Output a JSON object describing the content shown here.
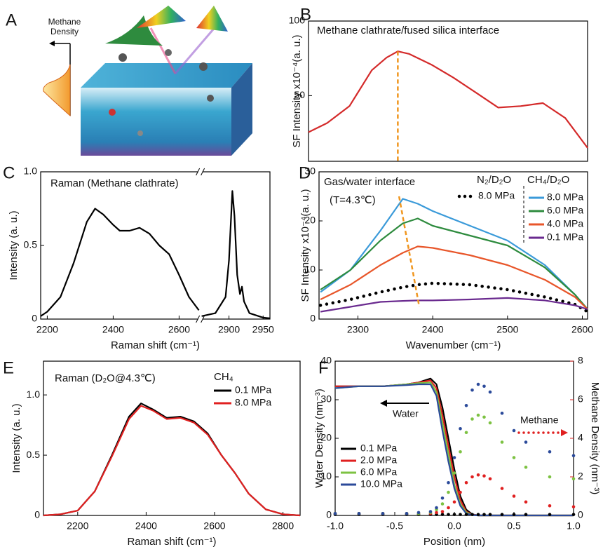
{
  "illustration": {
    "panel_label": "A",
    "label_lines": [
      "Methane",
      "Density"
    ]
  },
  "chart_data": [
    {
      "type": "line",
      "panel_label": "B",
      "title": "Methane clathrate/fused silica interface",
      "ylabel": "SF Intensity x10⁻⁴(a. u.)",
      "xlim": [
        2235,
        2610
      ],
      "ylim": [
        6,
        100
      ],
      "yticks": [
        50,
        100
      ],
      "x": [
        2235,
        2260,
        2290,
        2320,
        2340,
        2355,
        2370,
        2400,
        2430,
        2460,
        2490,
        2520,
        2550,
        2580,
        2610
      ],
      "series": [
        {
          "color": "#d42a2a",
          "values": [
            25.5,
            31.6,
            43,
            67,
            75.5,
            79.7,
            78,
            70.8,
            62,
            52,
            42,
            43,
            45,
            35,
            15
          ]
        }
      ],
      "peak_line": {
        "x": [
          2355,
          2355
        ],
        "y": [
          79.7,
          6
        ],
        "color": "#f0961e"
      }
    },
    {
      "type": "line",
      "panel_label": "C",
      "title": "Raman (Methane clathrate)",
      "xlabel": "Raman shift (cm⁻¹)",
      "ylabel": "Intensity (a. u.)",
      "xlim": [
        2180,
        2960
      ],
      "xbreak": [
        2660,
        2860
      ],
      "xticks": [
        2200,
        2400,
        2600,
        2900,
        2950
      ],
      "ylim": [
        0,
        1
      ],
      "yticks": [
        0,
        0.5,
        {
          "value": 1,
          "label": "1.0"
        }
      ],
      "x": [
        2180,
        2200,
        2240,
        2280,
        2320,
        2345,
        2370,
        2400,
        2420,
        2450,
        2480,
        2510,
        2540,
        2570,
        2600,
        2630,
        2660,
        2760,
        2860,
        2880,
        2895,
        2900,
        2905,
        2908,
        2912,
        2916,
        2919,
        2922,
        2930,
        2950,
        2960
      ],
      "series": [
        {
          "color": "#000000",
          "values": [
            0.02,
            0.05,
            0.15,
            0.38,
            0.66,
            0.75,
            0.71,
            0.64,
            0.6,
            0.6,
            0.62,
            0.58,
            0.5,
            0.44,
            0.3,
            0.15,
            0.06,
            null,
            0.02,
            0.04,
            0.15,
            0.4,
            0.87,
            0.7,
            0.3,
            0.17,
            0.22,
            0.12,
            0.04,
            0.01,
            0.005
          ]
        }
      ]
    },
    {
      "type": "line",
      "panel_label": "D",
      "title": "Gas/water interface",
      "subtitle": "(T=4.3℃)",
      "xlabel": "Wavenumber (cm⁻¹)",
      "ylabel": "SF Intensity x10⁻⁴(a. u.)",
      "xlim": [
        2248,
        2607
      ],
      "xticks": [
        2300,
        2400,
        2500,
        2600
      ],
      "ylim": [
        0,
        30
      ],
      "yticks": [
        0,
        10,
        20,
        30
      ],
      "legend_titles": [
        "N₂/D₂O",
        "CH₄/D₂O"
      ],
      "x": [
        2250,
        2290,
        2330,
        2360,
        2380,
        2400,
        2450,
        2500,
        2550,
        2590,
        2607
      ],
      "series": [
        {
          "name": "8.0 MPa",
          "color": "#000000",
          "style": "dotted",
          "group": 0,
          "values": [
            2.8,
            4,
            5.5,
            6.5,
            7,
            7.3,
            7,
            6,
            4.5,
            3,
            1.5
          ]
        },
        {
          "name": "8.0 MPa",
          "color": "#3a9ad9",
          "group": 1,
          "values": [
            5.5,
            10,
            18,
            24.5,
            23.5,
            22,
            19,
            16,
            11,
            5,
            2
          ]
        },
        {
          "name": "6.0 MPa",
          "color": "#2e8b3e",
          "group": 1,
          "values": [
            6,
            10,
            16,
            19.5,
            20.5,
            19,
            17,
            15,
            10.5,
            5,
            2
          ]
        },
        {
          "name": "4.0 MPa",
          "color": "#e8562a",
          "group": 1,
          "values": [
            4,
            7,
            11,
            13.5,
            14.8,
            14.5,
            13,
            11,
            8,
            4.5,
            2
          ]
        },
        {
          "name": "0.1 MPa",
          "color": "#6a2a8f",
          "group": 1,
          "values": [
            1.5,
            2.5,
            3.5,
            3.7,
            3.8,
            3.8,
            4,
            4.3,
            3.8,
            2.8,
            2
          ]
        }
      ],
      "peak_line": {
        "x": [
          2355,
          2382
        ],
        "y": [
          25,
          2.5
        ],
        "color": "#f0961e"
      }
    },
    {
      "type": "line",
      "panel_label": "E",
      "title": "Raman (D₂O@4.3℃)",
      "xlabel": "Raman shift (cm⁻¹)",
      "ylabel": "Intensity (a. u.)",
      "xlim": [
        2100,
        2850
      ],
      "xticks": [
        2200,
        2400,
        2600,
        2800
      ],
      "ylim": [
        0,
        1.28
      ],
      "yticks": [
        0,
        0.5,
        {
          "value": 1,
          "label": "1.0"
        }
      ],
      "legend_title": "CH₄",
      "x": [
        2100,
        2150,
        2200,
        2250,
        2300,
        2350,
        2385,
        2420,
        2460,
        2500,
        2540,
        2580,
        2620,
        2660,
        2700,
        2750,
        2800,
        2850
      ],
      "series": [
        {
          "name": "0.1 MPa",
          "color": "#000000",
          "values": [
            0,
            0.01,
            0.04,
            0.2,
            0.5,
            0.82,
            0.93,
            0.88,
            0.81,
            0.82,
            0.78,
            0.68,
            0.5,
            0.35,
            0.18,
            0.05,
            0.01,
            0
          ]
        },
        {
          "name": "8.0 MPa",
          "color": "#e02020",
          "values": [
            0,
            0.01,
            0.04,
            0.2,
            0.49,
            0.8,
            0.91,
            0.87,
            0.8,
            0.81,
            0.77,
            0.67,
            0.5,
            0.35,
            0.18,
            0.05,
            0.01,
            0
          ]
        }
      ]
    },
    {
      "type": "line",
      "panel_label": "F",
      "xlabel": "Position (nm)",
      "ylabel": "Water Density (nm⁻³)",
      "y2label": "Methane Density (nm⁻³)",
      "y2color": "#e02020",
      "xlim": [
        -1,
        1
      ],
      "xticks": [
        {
          "value": -1,
          "label": "-1.0"
        },
        -0.5,
        {
          "value": 0,
          "label": "0.0"
        },
        0.5,
        {
          "value": 1,
          "label": "1.0"
        }
      ],
      "ylim": [
        0,
        40
      ],
      "yticks": [
        0,
        10,
        20,
        30,
        40
      ],
      "y2lim": [
        0,
        8
      ],
      "y2ticks": [
        0,
        2,
        4,
        6,
        8
      ],
      "annotations": [
        "Water",
        "Methane"
      ],
      "x": [
        -1,
        -0.8,
        -0.6,
        -0.4,
        -0.3,
        -0.2,
        -0.15,
        -0.1,
        -0.05,
        0,
        0.05,
        0.1,
        0.15,
        0.2,
        0.25,
        0.3,
        0.4,
        0.5,
        0.6,
        0.8,
        1
      ],
      "series": [
        {
          "name": "0.1 MPa",
          "color": "#000000",
          "values": [
            33.5,
            33.5,
            33.5,
            34,
            34.5,
            35.5,
            34,
            28,
            20,
            12,
            5,
            1.5,
            0.3,
            0,
            0,
            0,
            0,
            0,
            0,
            0,
            0
          ]
        },
        {
          "name": "2.0 MPa",
          "color": "#e02020",
          "values": [
            33.5,
            33.5,
            33.5,
            34,
            34.5,
            35,
            33,
            26,
            18,
            10,
            4,
            1,
            0.2,
            0,
            0,
            0,
            0,
            0,
            0,
            0,
            0
          ]
        },
        {
          "name": "6.0 MPa",
          "color": "#7dc242",
          "values": [
            33,
            33.5,
            33.5,
            34,
            34.3,
            34.5,
            32,
            24,
            16,
            8,
            3,
            0.8,
            0.1,
            0,
            0,
            0,
            0,
            0,
            0,
            0,
            0
          ]
        },
        {
          "name": "10.0 MPa",
          "color": "#2b4a9a",
          "values": [
            33,
            33.5,
            33.5,
            33.8,
            34,
            34,
            31,
            22,
            14,
            7,
            2.5,
            0.5,
            0.1,
            0,
            0,
            0,
            0,
            0,
            0,
            0,
            0
          ]
        },
        {
          "color": "#000000",
          "axis": "y2",
          "style": "dots",
          "values": [
            0.05,
            0.05,
            0.05,
            0.05,
            0.05,
            0.05,
            0.05,
            0.05,
            0.05,
            0.05,
            0.05,
            0.05,
            0.05,
            0.05,
            0.05,
            0.05,
            0.05,
            0.05,
            0.05,
            0.05,
            0.05
          ]
        },
        {
          "color": "#e02020",
          "axis": "y2",
          "style": "dots",
          "values": [
            0.1,
            0.1,
            0.1,
            0.1,
            0.1,
            0.1,
            0.15,
            0.2,
            0.4,
            0.7,
            1.2,
            1.7,
            2,
            2.1,
            2.05,
            1.9,
            1.4,
            1,
            0.7,
            0.5,
            0.45
          ]
        },
        {
          "color": "#7dc242",
          "axis": "y2",
          "style": "dots",
          "values": [
            0.1,
            0.1,
            0.1,
            0.1,
            0.1,
            0.15,
            0.3,
            0.6,
            1.2,
            2.2,
            3.3,
            4.3,
            5,
            5.2,
            5.1,
            4.8,
            3.8,
            3,
            2.5,
            2,
            1.9
          ]
        },
        {
          "color": "#2b4a9a",
          "axis": "y2",
          "style": "dots",
          "values": [
            0.1,
            0.1,
            0.1,
            0.1,
            0.15,
            0.2,
            0.4,
            0.9,
            1.7,
            3,
            4.5,
            5.7,
            6.5,
            6.8,
            6.7,
            6.4,
            5.3,
            4.4,
            3.8,
            3.3,
            3.1
          ]
        }
      ]
    }
  ]
}
